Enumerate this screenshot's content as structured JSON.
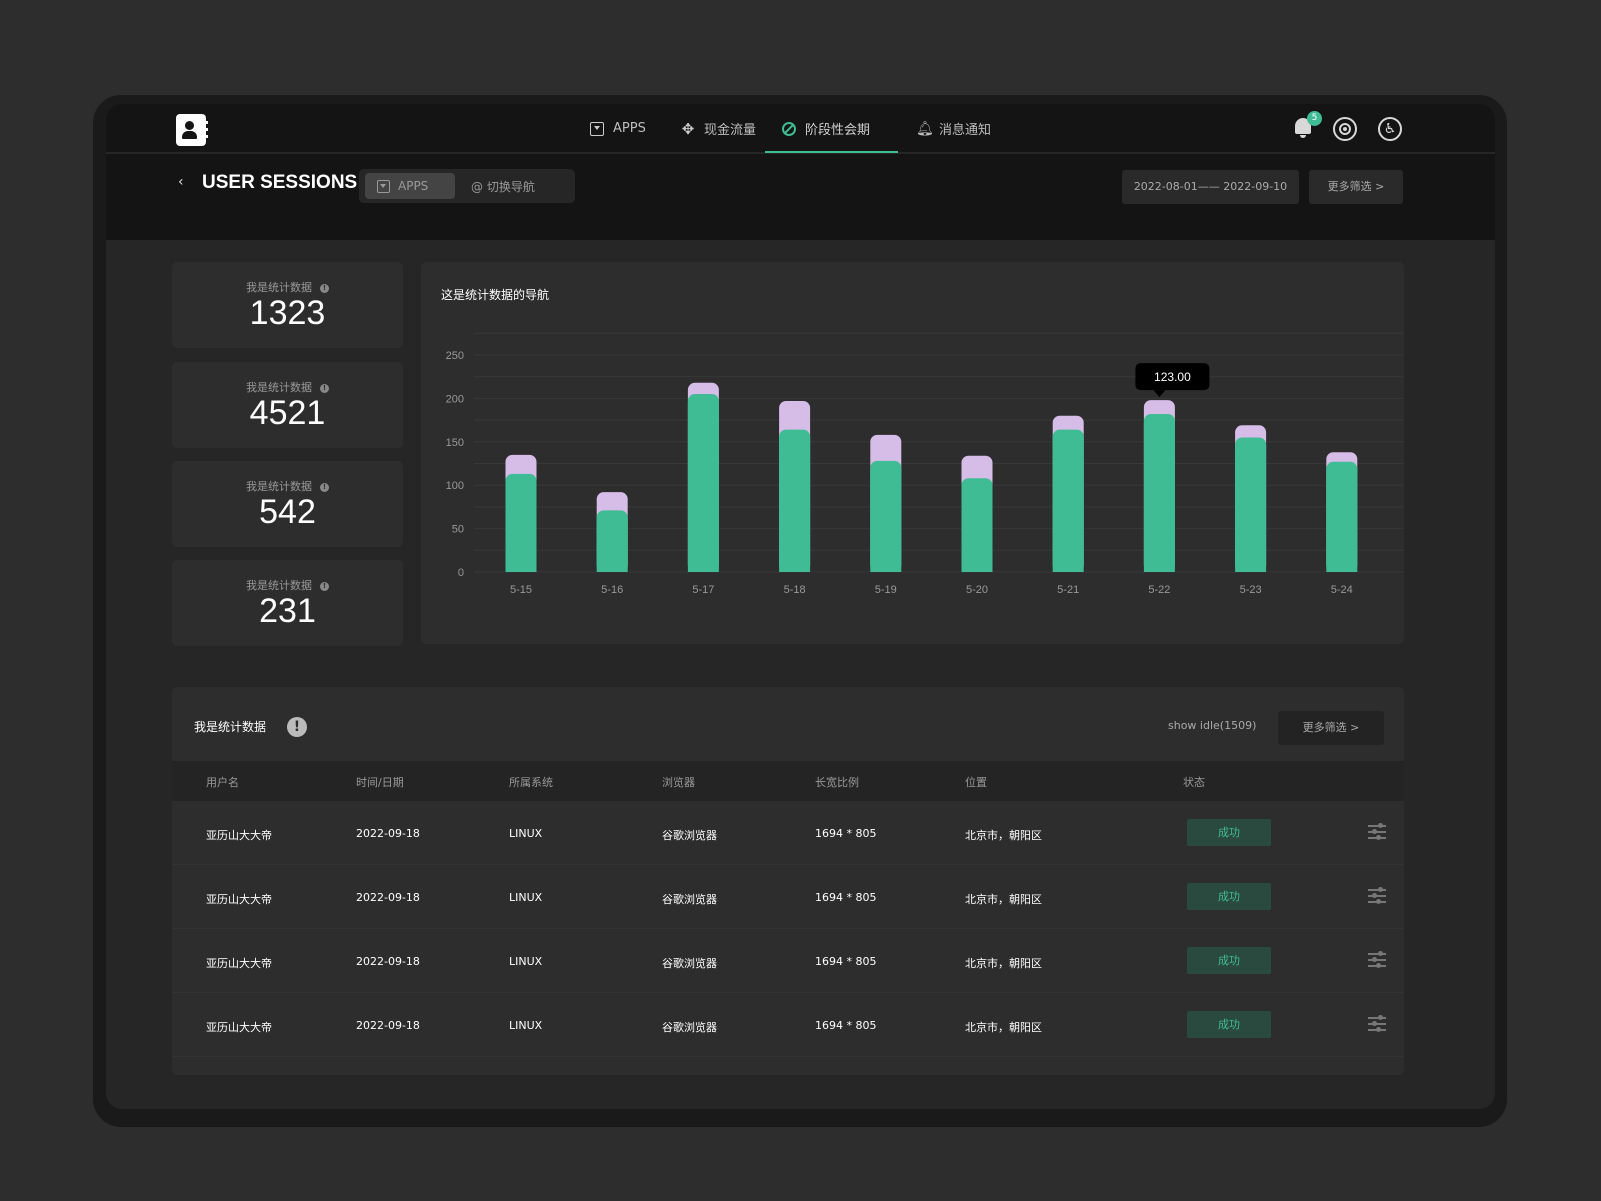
{
  "nav": {
    "items": [
      {
        "label": "APPS",
        "icon": "apps-icon"
      },
      {
        "label": "现金流量",
        "icon": "move-icon"
      },
      {
        "label": "阶段性会期",
        "icon": "ban-icon"
      },
      {
        "label": "消息通知",
        "icon": "bell-icon"
      }
    ],
    "active_index": 2,
    "notification_count": "5"
  },
  "header": {
    "title": "USER SESSIONS",
    "seg_apps": "APPS",
    "seg_switch": "@ 切换导航",
    "date_range": "2022-08-01—— 2022-09-10",
    "more_filter": "更多筛选 >"
  },
  "stats": [
    {
      "label": "我是统计数据",
      "value": "1323"
    },
    {
      "label": "我是统计数据",
      "value": "4521"
    },
    {
      "label": "我是统计数据",
      "value": "542"
    },
    {
      "label": "我是统计数据",
      "value": "231"
    }
  ],
  "chart": {
    "title": "这是统计数据的导航",
    "tooltip": "123.00"
  },
  "chart_data": {
    "type": "bar",
    "stacked": true,
    "categories": [
      "5-15",
      "5-16",
      "5-17",
      "5-18",
      "5-19",
      "5-20",
      "5-21",
      "5-22",
      "5-23",
      "5-24"
    ],
    "series": [
      {
        "values": [
          113,
          71,
          205,
          164,
          128,
          108,
          164,
          182,
          155,
          127
        ],
        "color": "#3fbc93"
      },
      {
        "values": [
          22,
          21,
          13,
          33,
          30,
          26,
          16,
          16,
          14,
          11
        ],
        "color": "#d5bde8"
      }
    ],
    "ylim": [
      0,
      250
    ],
    "yticks": [
      0,
      50,
      100,
      150,
      200,
      250
    ],
    "grid": true,
    "tooltip_category": "5-22"
  },
  "table": {
    "title": "我是统计数据",
    "idle": "show idle(1509)",
    "more_filter": "更多筛选 >",
    "columns": [
      "用户名",
      "时间/日期",
      "所属系统",
      "浏览器",
      "长宽比例",
      "位置",
      "状态"
    ],
    "rows": [
      [
        "亚历山大大帝",
        "2022-09-18",
        "LINUX",
        "谷歌浏览器",
        "1694 * 805",
        "北京市，朝阳区",
        "成功"
      ],
      [
        "亚历山大大帝",
        "2022-09-18",
        "LINUX",
        "谷歌浏览器",
        "1694 * 805",
        "北京市，朝阳区",
        "成功"
      ],
      [
        "亚历山大大帝",
        "2022-09-18",
        "LINUX",
        "谷歌浏览器",
        "1694 * 805",
        "北京市，朝阳区",
        "成功"
      ],
      [
        "亚历山大大帝",
        "2022-09-18",
        "LINUX",
        "谷歌浏览器",
        "1694 * 805",
        "北京市，朝阳区",
        "成功"
      ]
    ]
  },
  "colors": {
    "accent": "#3fbc93",
    "bar_top": "#d5bde8",
    "background": "#2d2d2d"
  }
}
